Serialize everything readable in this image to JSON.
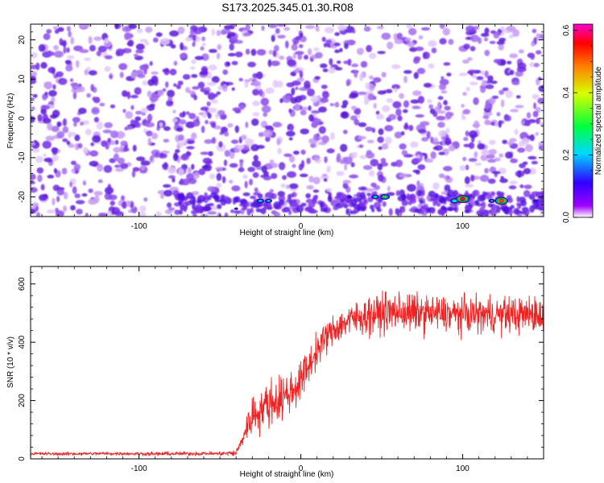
{
  "title": "S173.2025.345.01.30.R08",
  "colors": {
    "snr_line": "#ee2222",
    "frame": "#000000"
  },
  "chart_data": [
    {
      "type": "heatmap",
      "xlabel": "Height of straight line (km)",
      "ylabel": "Frequency (Hz)",
      "xlim": [
        -167,
        150
      ],
      "ylim": [
        -25,
        24
      ],
      "x_ticks": [
        -100,
        0,
        100
      ],
      "x_tick_labels": [
        "-100",
        "0",
        "100"
      ],
      "y_ticks": [
        -20,
        -10,
        0,
        10,
        20
      ],
      "y_tick_labels": [
        "-20",
        "-10",
        "0",
        "10",
        "20"
      ],
      "colorbar": {
        "label": "Normalized spectral amplitude",
        "range": [
          0.0,
          0.62
        ],
        "ticks": [
          0.0,
          0.2,
          0.4,
          0.6
        ],
        "tick_labels": [
          "0.0",
          "0.2",
          "0.4",
          "0.6"
        ]
      },
      "background_level": 0.1,
      "peaks": [
        {
          "x": -40,
          "y": -23,
          "value": 0.14
        },
        {
          "x": -25,
          "y": -21,
          "value": 0.26
        },
        {
          "x": -20,
          "y": -21,
          "value": 0.24
        },
        {
          "x": 30,
          "y": -20,
          "value": 0.16
        },
        {
          "x": 46,
          "y": -20,
          "value": 0.26
        },
        {
          "x": 52,
          "y": -20,
          "value": 0.34
        },
        {
          "x": 95,
          "y": -21,
          "value": 0.3
        },
        {
          "x": 100,
          "y": -20.5,
          "value": 0.6
        },
        {
          "x": 118,
          "y": -21,
          "value": 0.22
        },
        {
          "x": 124,
          "y": -21,
          "value": 0.57
        },
        {
          "x": 145,
          "y": -21,
          "value": 0.16
        }
      ]
    },
    {
      "type": "line",
      "xlabel": "Height of straight line (km)",
      "ylabel": "SNR (10 * v/v)",
      "xlim": [
        -167,
        150
      ],
      "ylim": [
        0,
        660
      ],
      "x_ticks": [
        -100,
        0,
        100
      ],
      "x_tick_labels": [
        "-100",
        "0",
        "100"
      ],
      "y_ticks": [
        0,
        200,
        400,
        600
      ],
      "y_tick_labels": [
        "0",
        "200",
        "400",
        "600"
      ],
      "series": [
        {
          "name": "SNR",
          "x": [
            -167,
            -150,
            -130,
            -110,
            -90,
            -70,
            -50,
            -40,
            -37,
            -33,
            -30,
            -25,
            -20,
            -15,
            -10,
            -5,
            0,
            5,
            10,
            15,
            20,
            25,
            30,
            40,
            50,
            60,
            70,
            80,
            90,
            100,
            110,
            120,
            130,
            140,
            150
          ],
          "values": [
            18,
            17,
            18,
            18,
            17,
            18,
            18,
            20,
            55,
            115,
            145,
            170,
            190,
            200,
            215,
            235,
            270,
            320,
            370,
            415,
            440,
            460,
            475,
            490,
            500,
            505,
            500,
            500,
            495,
            495,
            495,
            495,
            495,
            495,
            495
          ],
          "noise_amplitude": [
            5,
            5,
            5,
            5,
            6,
            6,
            6,
            10,
            20,
            45,
            60,
            65,
            70,
            70,
            70,
            65,
            60,
            55,
            50,
            48,
            48,
            48,
            50,
            55,
            60,
            60,
            60,
            55,
            55,
            55,
            55,
            55,
            55,
            55,
            55
          ]
        }
      ]
    }
  ]
}
